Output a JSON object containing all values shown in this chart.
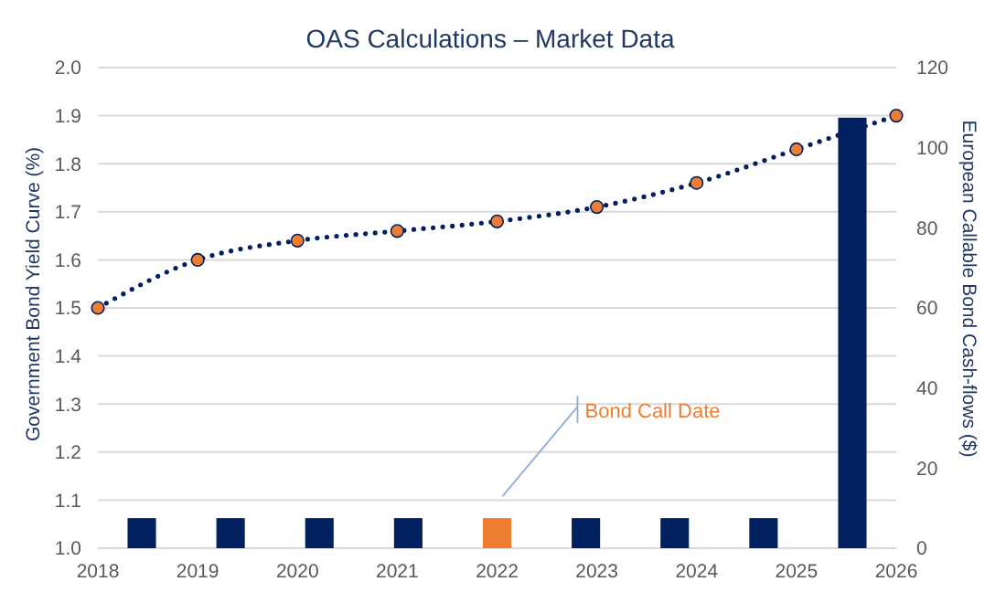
{
  "chart_data": {
    "type": "bar",
    "title": "OAS Calculations – Market Data",
    "ylabel": "Government Bond Yield Curve (%)",
    "y2label": "European Callable Bond Cash-flows ($)",
    "xlim": [
      2018,
      2026
    ],
    "xticks": [
      2018,
      2019,
      2020,
      2021,
      2022,
      2023,
      2024,
      2025,
      2026
    ],
    "ylim": [
      1,
      2
    ],
    "yticks": [
      {
        "value": 1,
        "label": "1.0"
      },
      1.1,
      1.2,
      1.3,
      1.4,
      1.5,
      1.6,
      1.7,
      1.8,
      1.9,
      {
        "value": 2,
        "label": "2.0"
      }
    ],
    "y2lim": [
      0,
      120
    ],
    "y2ticks": [
      0,
      20,
      40,
      60,
      80,
      100,
      120
    ],
    "grid": "y",
    "series": [
      {
        "axis": "y2",
        "x": [
          2018.44,
          2019.33,
          2020.22,
          2021.11,
          2022,
          2022.89,
          2023.78,
          2024.67,
          2025.56
        ],
        "values": [
          7.5,
          7.5,
          7.5,
          7.5,
          7.5,
          7.5,
          7.5,
          7.5,
          107.5
        ],
        "colors": [
          "#002060",
          "#002060",
          "#002060",
          "#002060",
          "#ed7d31",
          "#002060",
          "#002060",
          "#002060",
          "#002060"
        ]
      },
      {
        "type": "line",
        "x": [
          2018,
          2019,
          2020,
          2021,
          2022,
          2023,
          2024,
          2025,
          2026
        ],
        "values": [
          1.5,
          1.6,
          1.64,
          1.66,
          1.68,
          1.71,
          1.76,
          1.83,
          1.9
        ],
        "color": "#002060",
        "colors": [
          "#ed7d31",
          "#ed7d31",
          "#ed7d31",
          "#ed7d31",
          "#ed7d31",
          "#ed7d31",
          "#ed7d31",
          "#ed7d31",
          "#ed7d31"
        ],
        "marker": "circle",
        "line_style": "dotted"
      }
    ],
    "annotations": [
      "Bond Call Date"
    ]
  }
}
